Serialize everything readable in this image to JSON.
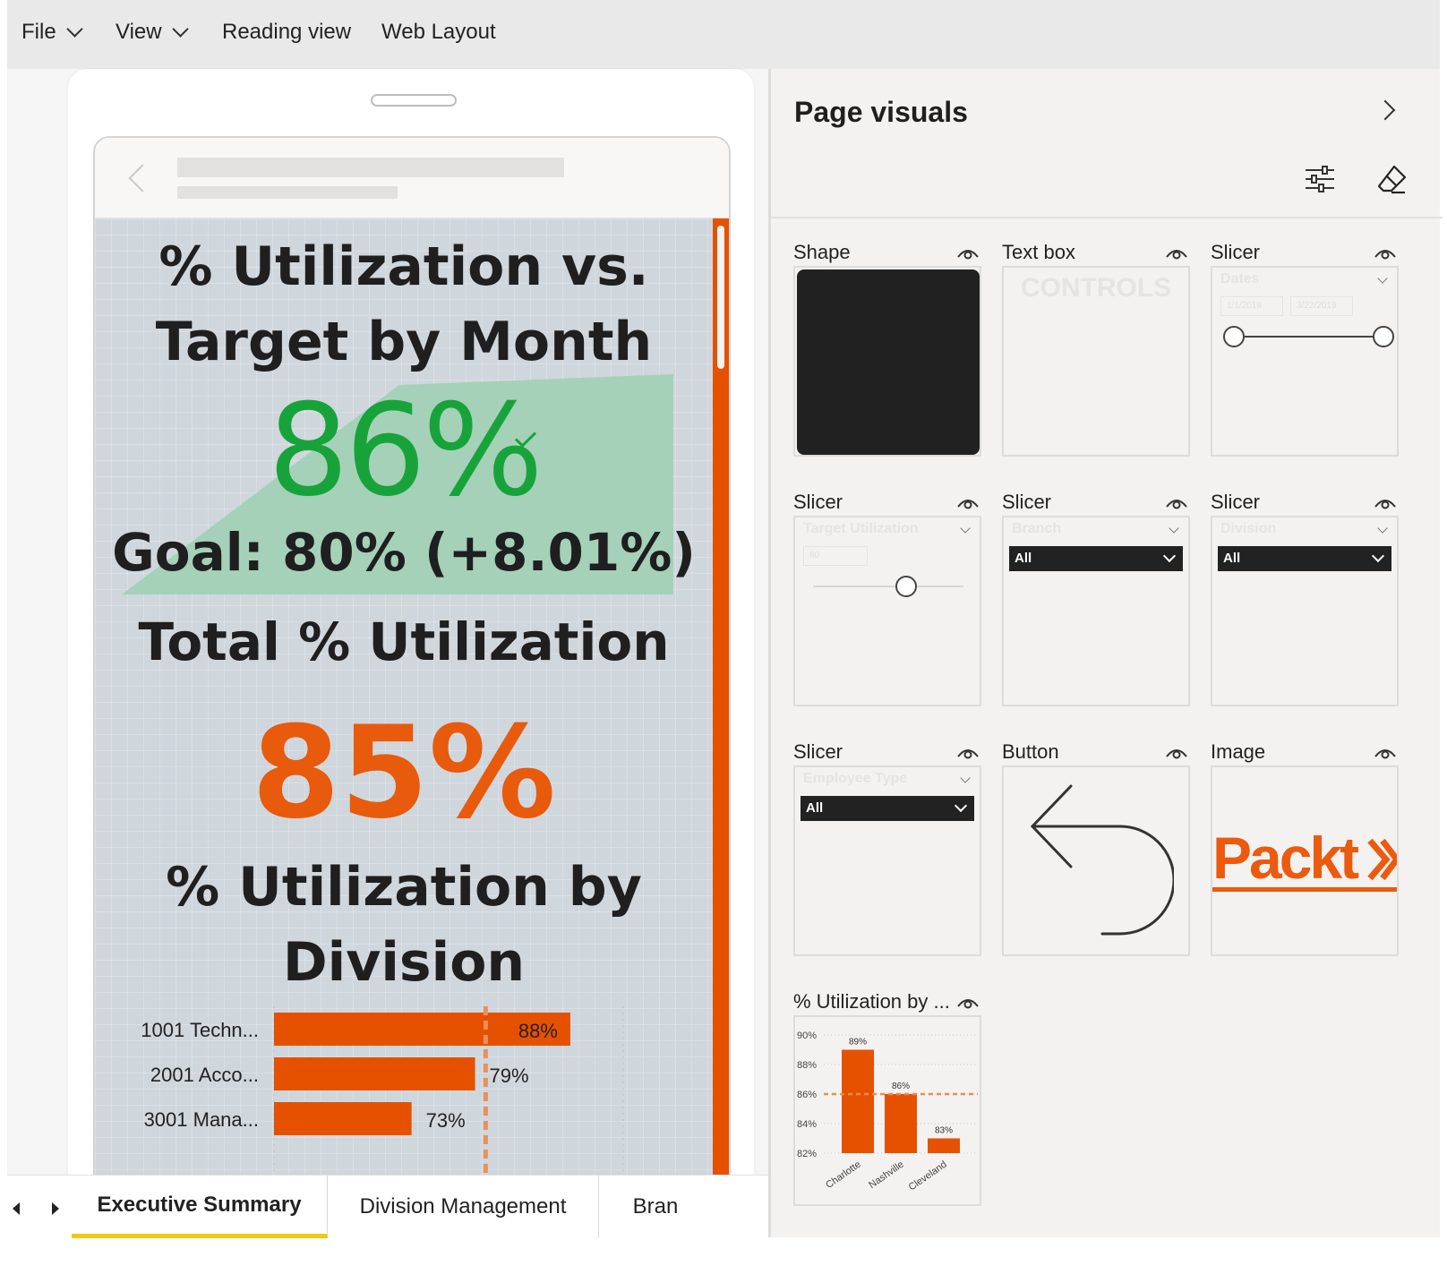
{
  "menu": {
    "file": "File",
    "view": "View",
    "reading_view": "Reading view",
    "web_layout": "Web Layout"
  },
  "report": {
    "title1_line1": "% Utilization vs.",
    "title1_line2": "Target by Month",
    "kpi_value": "86%",
    "kpi_goal": "Goal: 80% (+8.01%)",
    "title2": "Total % Utilization",
    "total_value": "85%",
    "title3_line1": "% Utilization by",
    "title3_line2": "Division",
    "colors": {
      "accent": "#e65100",
      "kpi_green": "#18a33a",
      "kpi_fill": "#9fd0b4"
    }
  },
  "chart_data": [
    {
      "type": "bar",
      "orientation": "horizontal",
      "categories": [
        "1001 Techn...",
        "2001 Acco...",
        "3001 Mana..."
      ],
      "values": [
        88,
        79,
        73
      ],
      "labels": [
        "88%",
        "79%",
        "73%"
      ],
      "target": 80,
      "xlim": [
        60,
        93
      ]
    },
    {
      "type": "bar",
      "categories": [
        "Charlotte",
        "Nashville",
        "Cleveland"
      ],
      "values": [
        89,
        86,
        83
      ],
      "labels": [
        "89%",
        "86%",
        "83%"
      ],
      "yticks": [
        "90%",
        "88%",
        "86%",
        "84%",
        "82%"
      ],
      "ylim": [
        82,
        90
      ],
      "target": 86
    }
  ],
  "tabs": [
    "Executive Summary",
    "Division Management",
    "Bran"
  ],
  "panel": {
    "title": "Page visuals",
    "cards": {
      "shape": "Shape",
      "textbox": "Text box",
      "slicer": "Slicer",
      "button": "Button",
      "image": "Image",
      "chart": "% Utilization by ..."
    },
    "textbox_text": "CONTROLS",
    "dates_slicer": {
      "title": "Dates",
      "start": "1/1/2019",
      "end": "3/22/2019"
    },
    "target_slicer": {
      "title": "Target Utilization",
      "value": "80"
    },
    "branch_slicer": {
      "title": "Branch",
      "value": "All"
    },
    "division_slicer": {
      "title": "Division",
      "value": "All"
    },
    "employee_slicer": {
      "title": "Employee Type",
      "value": "All"
    },
    "logo_text": "Packt"
  }
}
